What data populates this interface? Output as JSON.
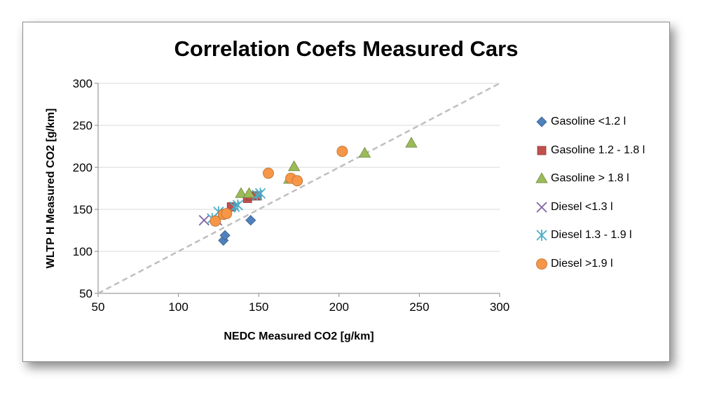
{
  "chart_data": {
    "type": "scatter",
    "title": "Correlation Coefs Measured Cars",
    "xlabel": "NEDC Measured CO2 [g/km]",
    "ylabel": "WLTP H Measured CO2 [g/km]",
    "xlim": [
      50,
      300
    ],
    "ylim": [
      50,
      300
    ],
    "xticks": [
      "50",
      "100",
      "150",
      "200",
      "250",
      "300"
    ],
    "yticks": [
      "50",
      "100",
      "150",
      "200",
      "250",
      "300"
    ],
    "grid": "horizontal",
    "legend_position": "right",
    "reference_line": {
      "style": "dashed",
      "color": "#bfbfbf",
      "from": [
        50,
        50
      ],
      "to": [
        300,
        300
      ]
    },
    "series": [
      {
        "name": "Gasoline <1.2 l",
        "marker": "diamond",
        "color": "#4f81bd",
        "points": [
          [
            128,
            113
          ],
          [
            129,
            119
          ],
          [
            145,
            137
          ]
        ]
      },
      {
        "name": "Gasoline 1.2 - 1.8 l",
        "marker": "square",
        "color": "#c0504d",
        "points": [
          [
            133,
            153
          ],
          [
            143,
            163
          ],
          [
            145,
            166
          ],
          [
            149,
            166
          ]
        ]
      },
      {
        "name": "Gasoline > 1.8 l",
        "marker": "triangle",
        "color": "#9bbb59",
        "points": [
          [
            139,
            169
          ],
          [
            144,
            169
          ],
          [
            169,
            186
          ],
          [
            172,
            201
          ],
          [
            216,
            217
          ],
          [
            245,
            229
          ]
        ]
      },
      {
        "name": "Diesel <1.3 l",
        "marker": "x",
        "color": "#8064a2",
        "points": [
          [
            116,
            137
          ],
          [
            124,
            137
          ]
        ]
      },
      {
        "name": "Diesel 1.3 - 1.9 l",
        "marker": "asterisk",
        "color": "#4bacc6",
        "points": [
          [
            121,
            139
          ],
          [
            125,
            147
          ],
          [
            135,
            153
          ],
          [
            137,
            155
          ],
          [
            149,
            167
          ],
          [
            151,
            169
          ]
        ]
      },
      {
        "name": "Diesel >1.9 l",
        "marker": "circle",
        "color": "#f79646",
        "points": [
          [
            123,
            136
          ],
          [
            128,
            144
          ],
          [
            130,
            145
          ],
          [
            156,
            193
          ],
          [
            170,
            187
          ],
          [
            174,
            184
          ],
          [
            202,
            219
          ]
        ]
      }
    ]
  }
}
